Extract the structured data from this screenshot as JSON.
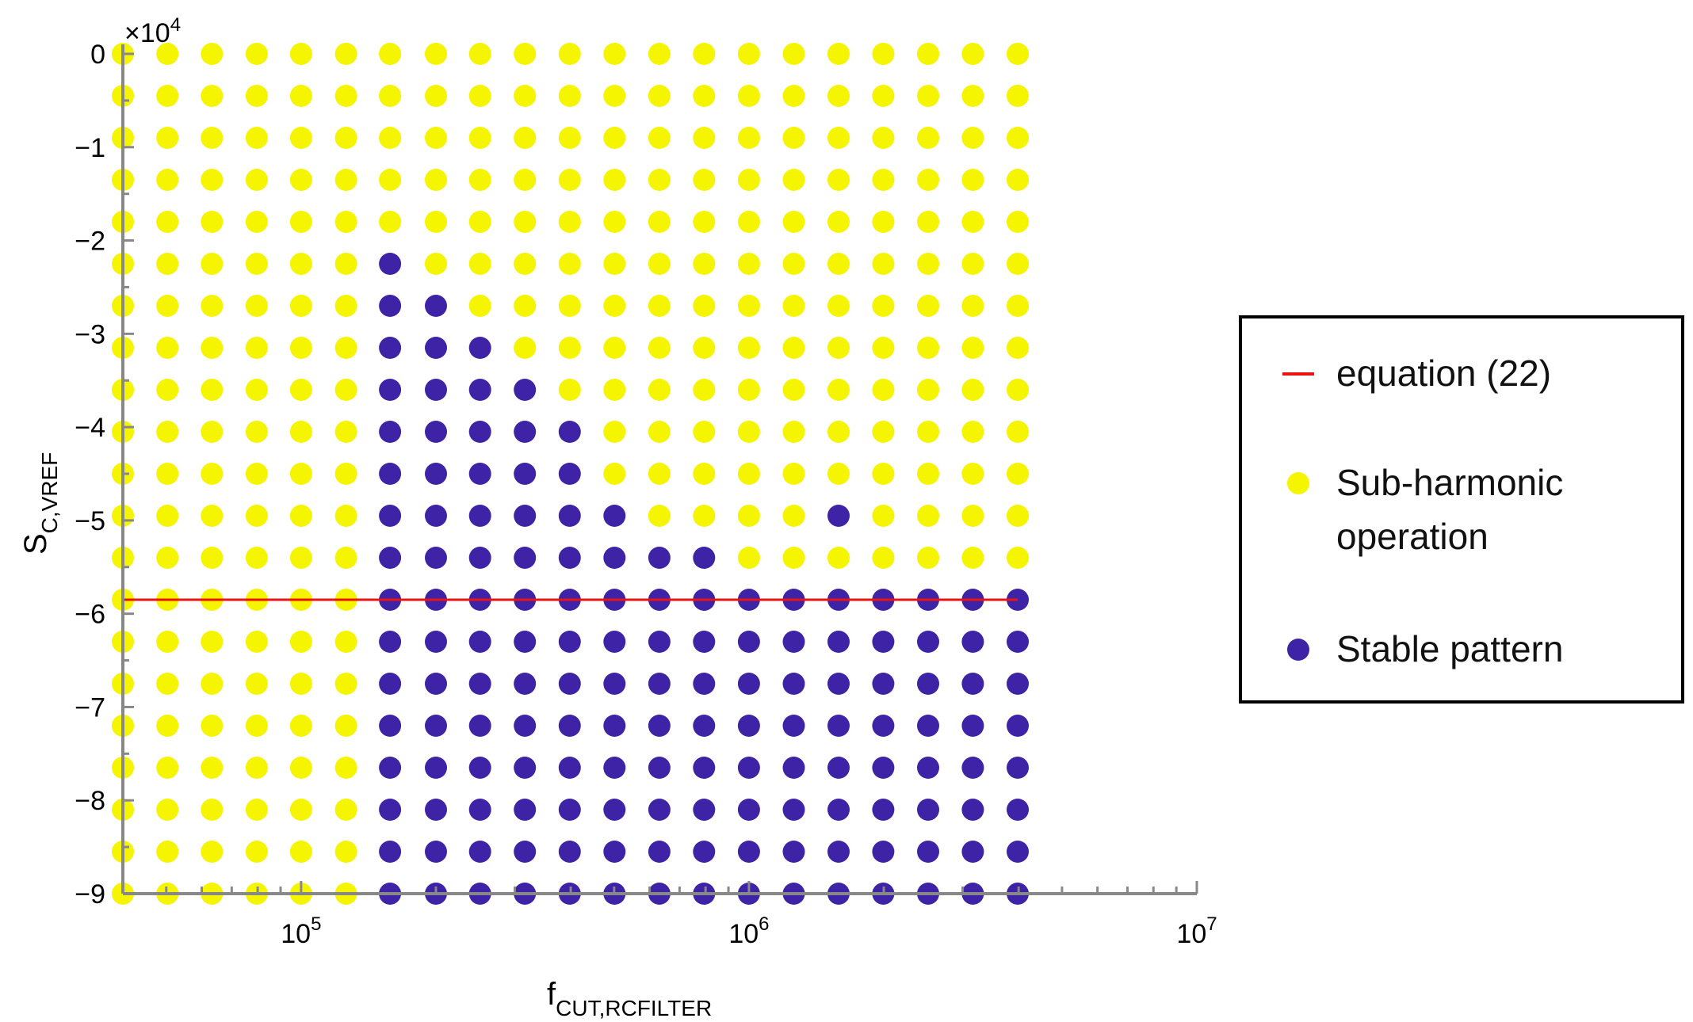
{
  "chart_data": {
    "type": "scatter",
    "xscale": "log",
    "xlim": [
      40000,
      10000000
    ],
    "ylim": [
      -90000,
      0
    ],
    "y_multiplier_label": {
      "base": "×10",
      "exp": "4"
    },
    "x_tick_labels": [
      {
        "value": 100000,
        "base": "10",
        "exp": "5"
      },
      {
        "value": 1000000,
        "base": "10",
        "exp": "6"
      },
      {
        "value": 10000000,
        "base": "10",
        "exp": "7"
      }
    ],
    "y_ticks": [
      {
        "value": 0,
        "label": "0"
      },
      {
        "value": -10000,
        "label": "−1"
      },
      {
        "value": -20000,
        "label": "−2"
      },
      {
        "value": -30000,
        "label": "−3"
      },
      {
        "value": -40000,
        "label": "−4"
      },
      {
        "value": -50000,
        "label": "−5"
      },
      {
        "value": -60000,
        "label": "−6"
      },
      {
        "value": -70000,
        "label": "−7"
      },
      {
        "value": -80000,
        "label": "−8"
      },
      {
        "value": -90000,
        "label": "−9"
      }
    ],
    "xlabel": {
      "main": "f",
      "sub": "CUT,RCFILTER"
    },
    "ylabel": {
      "main": "S",
      "sub": "C,VREF"
    },
    "grid": false,
    "legend_position": "right",
    "x": [
      40000,
      50300,
      63200,
      79600,
      100000,
      126000,
      158000,
      200000,
      251000,
      316000,
      398000,
      501000,
      631000,
      794000,
      1000000,
      1259000,
      1585000,
      1995000,
      2512000,
      3162000,
      3981000
    ],
    "y": [
      0,
      -4500,
      -9000,
      -13500,
      -18000,
      -22500,
      -27000,
      -31500,
      -36000,
      -40500,
      -45000,
      -49500,
      -54000,
      -58500,
      -63000,
      -67500,
      -72000,
      -76500,
      -81000,
      -85500,
      -90000
    ],
    "stable_first_col_by_row": [
      -1,
      -1,
      -1,
      -1,
      -1,
      6,
      6,
      6,
      6,
      6,
      6,
      6,
      6,
      6,
      6,
      6,
      6,
      6,
      6,
      6,
      6
    ],
    "stable_last_col_by_row": [
      -1,
      -1,
      -1,
      -1,
      -1,
      6,
      7,
      8,
      9,
      10,
      10,
      11,
      13,
      20,
      20,
      20,
      20,
      20,
      20,
      20,
      20
    ],
    "row12_subharmonic_cols": [
      14,
      19,
      20
    ],
    "row11_stable_extra_cols": [
      16
    ],
    "line": {
      "name": "equation (22)",
      "y": -58500,
      "x_range": [
        40000,
        3981000
      ],
      "color": "#ee1111"
    },
    "series": [
      {
        "name": "Sub-harmonic operation",
        "label_lines": [
          "Sub-harmonic",
          "operation"
        ],
        "color": "#f5f500"
      },
      {
        "name": "Stable pattern",
        "label_lines": [
          "Stable pattern"
        ],
        "color": "#3f23a6"
      }
    ]
  }
}
